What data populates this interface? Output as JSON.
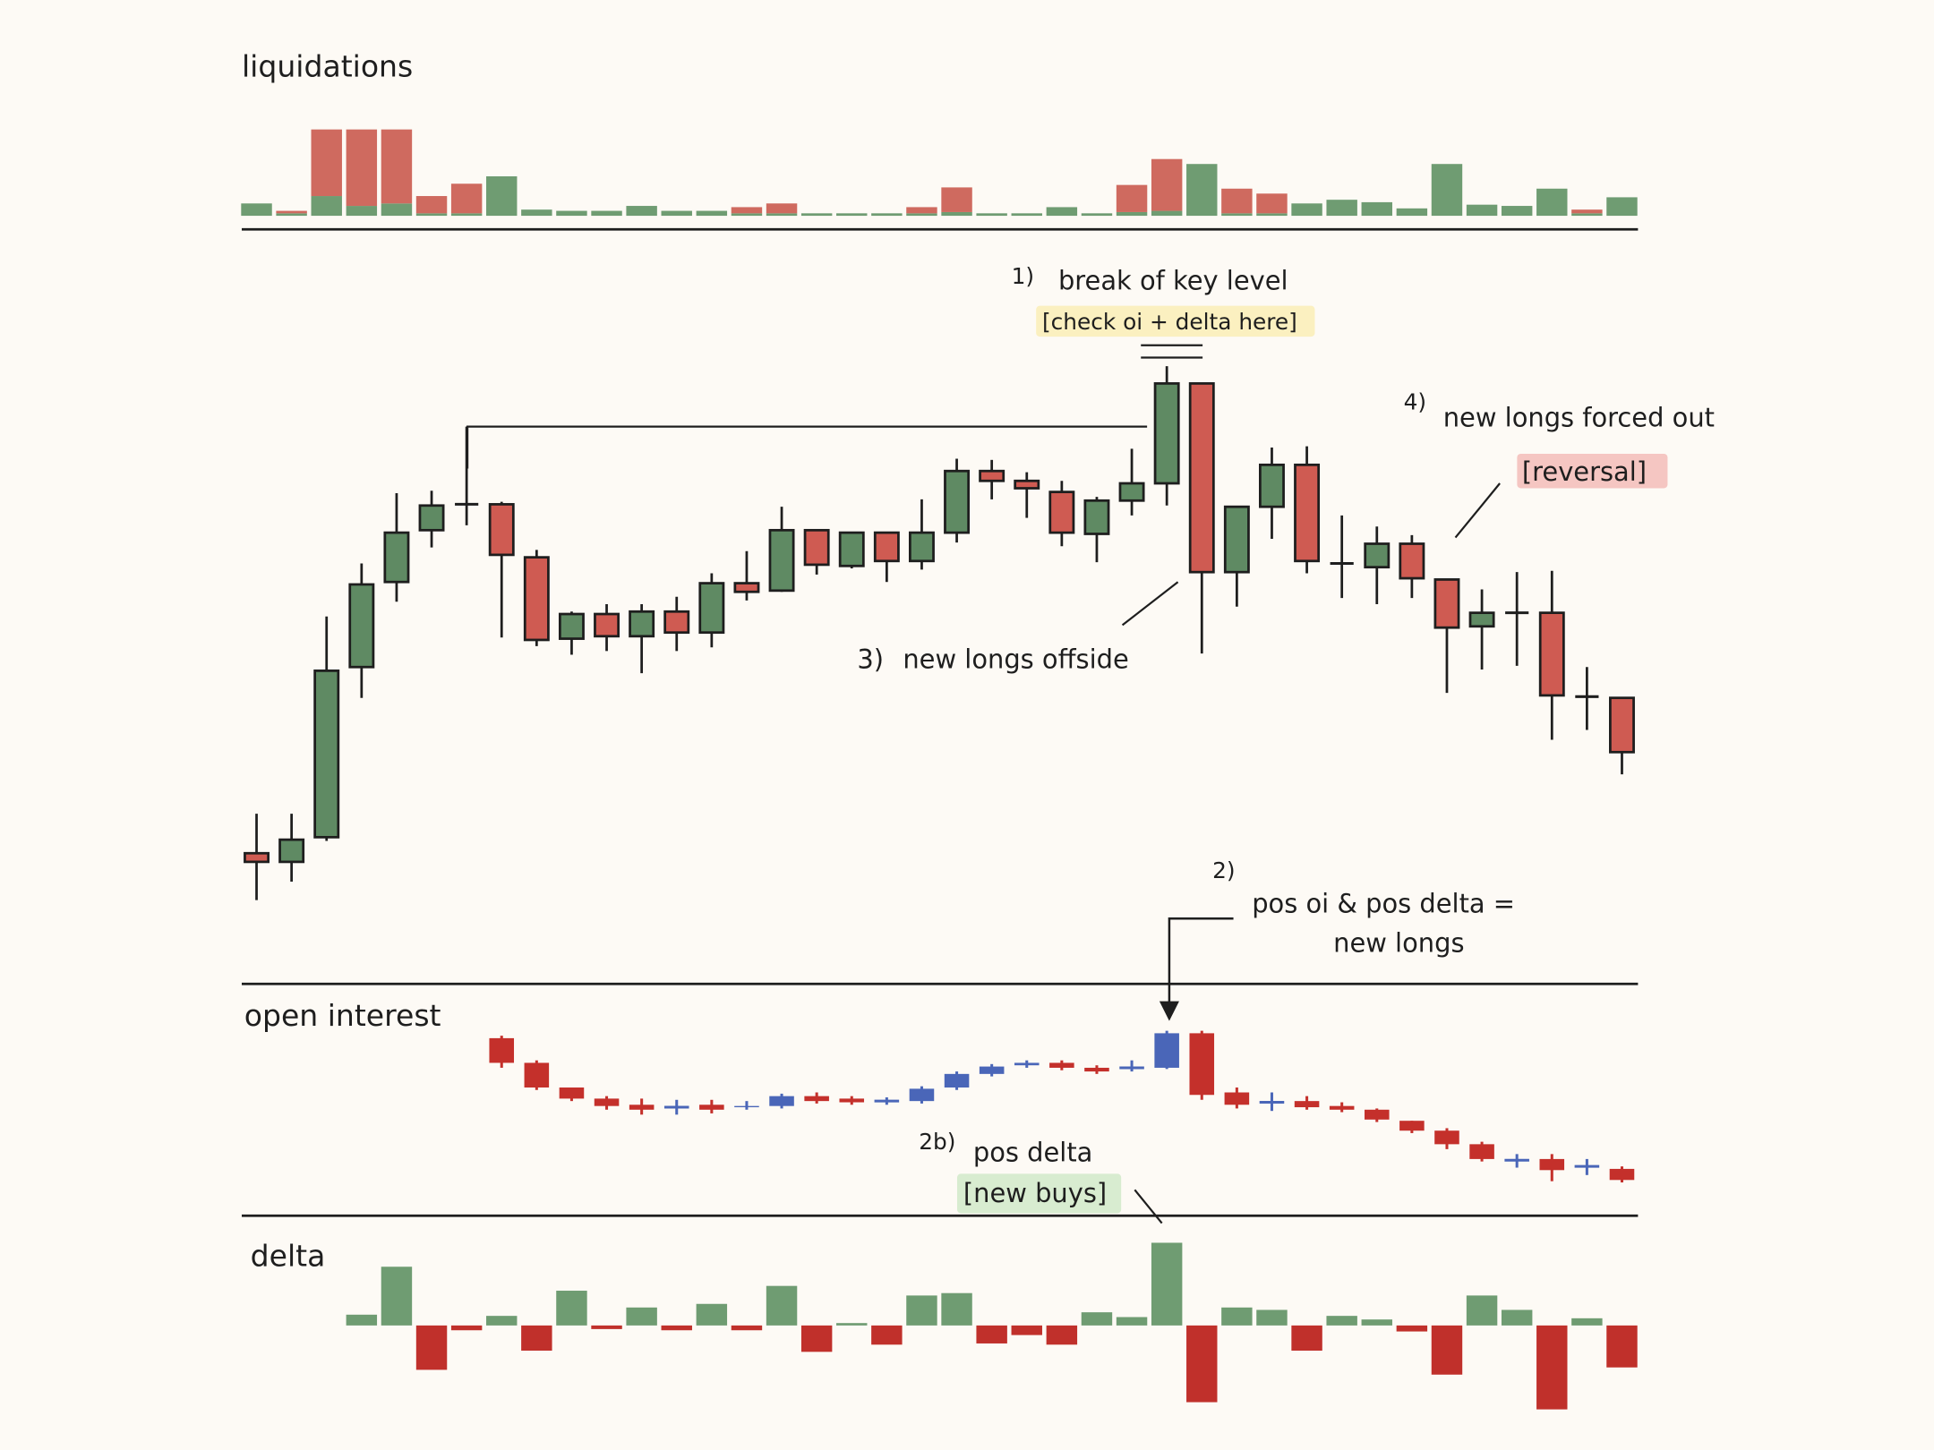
{
  "chart_data": [
    {
      "type": "bar",
      "title": "liquidations",
      "stacked": true,
      "ylim": [
        0,
        80
      ],
      "series": [
        {
          "color": "#6f9c72",
          "values": [
            10,
            2,
            16,
            8,
            10,
            2,
            2,
            32,
            5,
            4,
            4,
            8,
            4,
            4,
            2,
            2,
            2,
            2,
            2,
            2,
            3,
            2,
            2,
            7,
            2,
            3,
            4,
            42,
            2,
            2,
            10,
            13,
            11,
            6,
            42,
            9,
            8,
            22,
            2,
            15
          ]
        },
        {
          "color": "#cf6a5f",
          "values": [
            0,
            2,
            54,
            62,
            60,
            14,
            24,
            0,
            0,
            0,
            0,
            0,
            0,
            0,
            5,
            8,
            0,
            0,
            0,
            5,
            20,
            0,
            0,
            0,
            0,
            22,
            42,
            0,
            20,
            16,
            0,
            0,
            0,
            0,
            0,
            0,
            0,
            0,
            3,
            0
          ]
        }
      ]
    },
    {
      "type": "candlestick",
      "ylim": [
        0,
        610
      ],
      "up_color": "#5f8a63",
      "down_color": "#cf5b52",
      "open": [
        108,
        101,
        121,
        259,
        328,
        370,
        391,
        391,
        348,
        282,
        302,
        284,
        304,
        287,
        327,
        321,
        370,
        341,
        368,
        345,
        368,
        418,
        410,
        401,
        367,
        394,
        408,
        489,
        336,
        389,
        423,
        343,
        340,
        359,
        330,
        292,
        303,
        303,
        235,
        234
      ],
      "high": [
        140,
        140,
        300,
        343,
        400,
        402,
        454,
        393,
        354,
        304,
        310,
        310,
        316,
        335,
        353,
        389,
        370,
        368,
        368,
        395,
        428,
        427,
        417,
        410,
        397,
        436,
        503,
        489,
        389,
        437,
        438,
        382,
        373,
        366,
        330,
        322,
        336,
        337,
        259,
        234
      ],
      "low": [
        70,
        85,
        118,
        234,
        312,
        356,
        374,
        283,
        276,
        269,
        272,
        254,
        272,
        275,
        313,
        320,
        334,
        339,
        328,
        338,
        360,
        395,
        380,
        357,
        344,
        382,
        390,
        270,
        308,
        363,
        335,
        315,
        310,
        315,
        238,
        257,
        260,
        200,
        208,
        172
      ],
      "close": [
        101,
        119,
        256,
        326,
        368,
        390,
        391,
        350,
        281,
        302,
        284,
        304,
        287,
        327,
        320,
        370,
        342,
        368,
        345,
        368,
        418,
        410,
        404,
        368,
        394,
        408,
        489,
        336,
        389,
        423,
        345,
        343,
        359,
        331,
        291,
        303,
        303,
        236,
        235,
        190
      ]
    },
    {
      "type": "candlestick",
      "title": "open interest",
      "ylim": [
        40,
        180
      ],
      "up_color": "#4a66b8",
      "down_color": "#c4302b",
      "outline": false,
      "open": [
        null,
        null,
        null,
        null,
        null,
        null,
        null,
        158,
        138,
        118,
        109,
        104,
        102,
        104,
        102,
        103,
        111,
        109,
        107,
        107,
        118,
        129,
        136,
        138,
        134,
        134,
        134,
        162,
        114,
        106,
        107,
        103,
        100,
        91,
        83,
        72,
        59,
        60,
        54,
        52
      ],
      "high": [
        null,
        null,
        null,
        null,
        null,
        null,
        null,
        160,
        140,
        118,
        111,
        109,
        108,
        108,
        107,
        113,
        114,
        111,
        110,
        119,
        131,
        137,
        140,
        140,
        136,
        140,
        164,
        164,
        118,
        114,
        111,
        106,
        101,
        91,
        85,
        74,
        64,
        64,
        60,
        54
      ],
      "low": [
        null,
        null,
        null,
        null,
        null,
        null,
        null,
        134,
        116,
        107,
        100,
        96,
        96,
        97,
        100,
        101,
        105,
        104,
        104,
        105,
        116,
        127,
        134,
        132,
        129,
        131,
        133,
        108,
        101,
        99,
        100,
        98,
        90,
        81,
        68,
        58,
        53,
        42,
        47,
        41
      ],
      "close": [
        null,
        null,
        null,
        null,
        null,
        null,
        null,
        138,
        118,
        109,
        103,
        100,
        102,
        100,
        103,
        111,
        107,
        106,
        107,
        117,
        129,
        135,
        138,
        134,
        131,
        134,
        162,
        112,
        104,
        106,
        102,
        100,
        92,
        83,
        72,
        60,
        59,
        51,
        54,
        43
      ]
    },
    {
      "type": "bar",
      "title": "delta",
      "ylim": [
        -72,
        72
      ],
      "positive_color": "#6f9c72",
      "negative_color": "#c0302b",
      "values": [
        null,
        null,
        null,
        9,
        49,
        -37,
        -4,
        8,
        -21,
        29,
        -3,
        15,
        -4,
        18,
        -4,
        33,
        -22,
        2,
        -16,
        25,
        27,
        -15,
        -8,
        -16,
        11,
        7,
        69,
        -64,
        15,
        13,
        -21,
        8,
        5,
        -5,
        -41,
        25,
        13,
        -70,
        6,
        -35
      ]
    }
  ],
  "annotations": {
    "a1_num": "1)",
    "a1_text": "break of key level",
    "a1_note": "[check oi + delta here]",
    "a4_num": "4)",
    "a4_text": "new longs forced out",
    "a4_note": "[reversal]",
    "a3_num": "3)",
    "a3_text": "new longs offside",
    "a2_num": "2)",
    "a2_line1": "pos oi & pos delta =",
    "a2_line2": "new longs",
    "a2b_num": "2b)",
    "a2b_text": "pos delta",
    "a2b_note": "[new buys]"
  }
}
